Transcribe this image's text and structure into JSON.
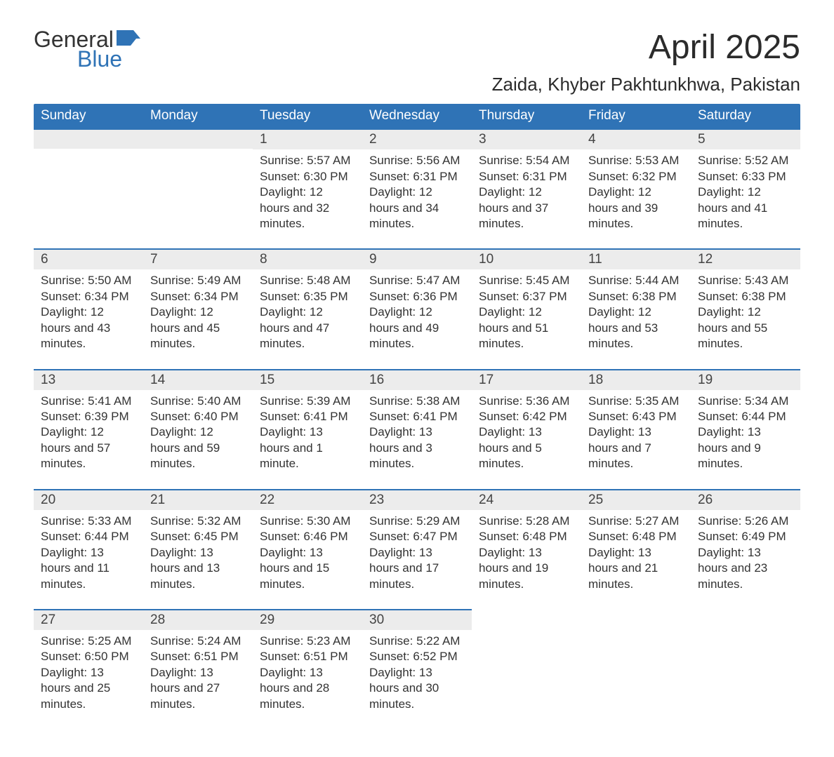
{
  "logo": {
    "word1": "General",
    "word2": "Blue"
  },
  "title": "April 2025",
  "location": "Zaida, Khyber Pakhtunkhwa, Pakistan",
  "colors": {
    "header_bg": "#2f73b6",
    "header_text": "#ffffff",
    "daynum_bg": "#ececec",
    "daynum_border": "#2f73b6",
    "body_text": "#333333",
    "logo_blue": "#2f73b6",
    "page_bg": "#ffffff"
  },
  "typography": {
    "title_fontsize": 48,
    "location_fontsize": 26,
    "weekday_fontsize": 19,
    "daynum_fontsize": 19,
    "body_fontsize": 17,
    "font_family": "Segoe UI"
  },
  "weekdays": [
    "Sunday",
    "Monday",
    "Tuesday",
    "Wednesday",
    "Thursday",
    "Friday",
    "Saturday"
  ],
  "weeks": [
    [
      {
        "empty": true
      },
      {
        "empty": true
      },
      {
        "day": "1",
        "sunrise": "Sunrise: 5:57 AM",
        "sunset": "Sunset: 6:30 PM",
        "daylight": "Daylight: 12 hours and 32 minutes."
      },
      {
        "day": "2",
        "sunrise": "Sunrise: 5:56 AM",
        "sunset": "Sunset: 6:31 PM",
        "daylight": "Daylight: 12 hours and 34 minutes."
      },
      {
        "day": "3",
        "sunrise": "Sunrise: 5:54 AM",
        "sunset": "Sunset: 6:31 PM",
        "daylight": "Daylight: 12 hours and 37 minutes."
      },
      {
        "day": "4",
        "sunrise": "Sunrise: 5:53 AM",
        "sunset": "Sunset: 6:32 PM",
        "daylight": "Daylight: 12 hours and 39 minutes."
      },
      {
        "day": "5",
        "sunrise": "Sunrise: 5:52 AM",
        "sunset": "Sunset: 6:33 PM",
        "daylight": "Daylight: 12 hours and 41 minutes."
      }
    ],
    [
      {
        "day": "6",
        "sunrise": "Sunrise: 5:50 AM",
        "sunset": "Sunset: 6:34 PM",
        "daylight": "Daylight: 12 hours and 43 minutes."
      },
      {
        "day": "7",
        "sunrise": "Sunrise: 5:49 AM",
        "sunset": "Sunset: 6:34 PM",
        "daylight": "Daylight: 12 hours and 45 minutes."
      },
      {
        "day": "8",
        "sunrise": "Sunrise: 5:48 AM",
        "sunset": "Sunset: 6:35 PM",
        "daylight": "Daylight: 12 hours and 47 minutes."
      },
      {
        "day": "9",
        "sunrise": "Sunrise: 5:47 AM",
        "sunset": "Sunset: 6:36 PM",
        "daylight": "Daylight: 12 hours and 49 minutes."
      },
      {
        "day": "10",
        "sunrise": "Sunrise: 5:45 AM",
        "sunset": "Sunset: 6:37 PM",
        "daylight": "Daylight: 12 hours and 51 minutes."
      },
      {
        "day": "11",
        "sunrise": "Sunrise: 5:44 AM",
        "sunset": "Sunset: 6:38 PM",
        "daylight": "Daylight: 12 hours and 53 minutes."
      },
      {
        "day": "12",
        "sunrise": "Sunrise: 5:43 AM",
        "sunset": "Sunset: 6:38 PM",
        "daylight": "Daylight: 12 hours and 55 minutes."
      }
    ],
    [
      {
        "day": "13",
        "sunrise": "Sunrise: 5:41 AM",
        "sunset": "Sunset: 6:39 PM",
        "daylight": "Daylight: 12 hours and 57 minutes."
      },
      {
        "day": "14",
        "sunrise": "Sunrise: 5:40 AM",
        "sunset": "Sunset: 6:40 PM",
        "daylight": "Daylight: 12 hours and 59 minutes."
      },
      {
        "day": "15",
        "sunrise": "Sunrise: 5:39 AM",
        "sunset": "Sunset: 6:41 PM",
        "daylight": "Daylight: 13 hours and 1 minute."
      },
      {
        "day": "16",
        "sunrise": "Sunrise: 5:38 AM",
        "sunset": "Sunset: 6:41 PM",
        "daylight": "Daylight: 13 hours and 3 minutes."
      },
      {
        "day": "17",
        "sunrise": "Sunrise: 5:36 AM",
        "sunset": "Sunset: 6:42 PM",
        "daylight": "Daylight: 13 hours and 5 minutes."
      },
      {
        "day": "18",
        "sunrise": "Sunrise: 5:35 AM",
        "sunset": "Sunset: 6:43 PM",
        "daylight": "Daylight: 13 hours and 7 minutes."
      },
      {
        "day": "19",
        "sunrise": "Sunrise: 5:34 AM",
        "sunset": "Sunset: 6:44 PM",
        "daylight": "Daylight: 13 hours and 9 minutes."
      }
    ],
    [
      {
        "day": "20",
        "sunrise": "Sunrise: 5:33 AM",
        "sunset": "Sunset: 6:44 PM",
        "daylight": "Daylight: 13 hours and 11 minutes."
      },
      {
        "day": "21",
        "sunrise": "Sunrise: 5:32 AM",
        "sunset": "Sunset: 6:45 PM",
        "daylight": "Daylight: 13 hours and 13 minutes."
      },
      {
        "day": "22",
        "sunrise": "Sunrise: 5:30 AM",
        "sunset": "Sunset: 6:46 PM",
        "daylight": "Daylight: 13 hours and 15 minutes."
      },
      {
        "day": "23",
        "sunrise": "Sunrise: 5:29 AM",
        "sunset": "Sunset: 6:47 PM",
        "daylight": "Daylight: 13 hours and 17 minutes."
      },
      {
        "day": "24",
        "sunrise": "Sunrise: 5:28 AM",
        "sunset": "Sunset: 6:48 PM",
        "daylight": "Daylight: 13 hours and 19 minutes."
      },
      {
        "day": "25",
        "sunrise": "Sunrise: 5:27 AM",
        "sunset": "Sunset: 6:48 PM",
        "daylight": "Daylight: 13 hours and 21 minutes."
      },
      {
        "day": "26",
        "sunrise": "Sunrise: 5:26 AM",
        "sunset": "Sunset: 6:49 PM",
        "daylight": "Daylight: 13 hours and 23 minutes."
      }
    ],
    [
      {
        "day": "27",
        "sunrise": "Sunrise: 5:25 AM",
        "sunset": "Sunset: 6:50 PM",
        "daylight": "Daylight: 13 hours and 25 minutes."
      },
      {
        "day": "28",
        "sunrise": "Sunrise: 5:24 AM",
        "sunset": "Sunset: 6:51 PM",
        "daylight": "Daylight: 13 hours and 27 minutes."
      },
      {
        "day": "29",
        "sunrise": "Sunrise: 5:23 AM",
        "sunset": "Sunset: 6:51 PM",
        "daylight": "Daylight: 13 hours and 28 minutes."
      },
      {
        "day": "30",
        "sunrise": "Sunrise: 5:22 AM",
        "sunset": "Sunset: 6:52 PM",
        "daylight": "Daylight: 13 hours and 30 minutes."
      },
      {
        "empty": true,
        "trailing": true
      },
      {
        "empty": true,
        "trailing": true
      },
      {
        "empty": true,
        "trailing": true
      }
    ]
  ]
}
